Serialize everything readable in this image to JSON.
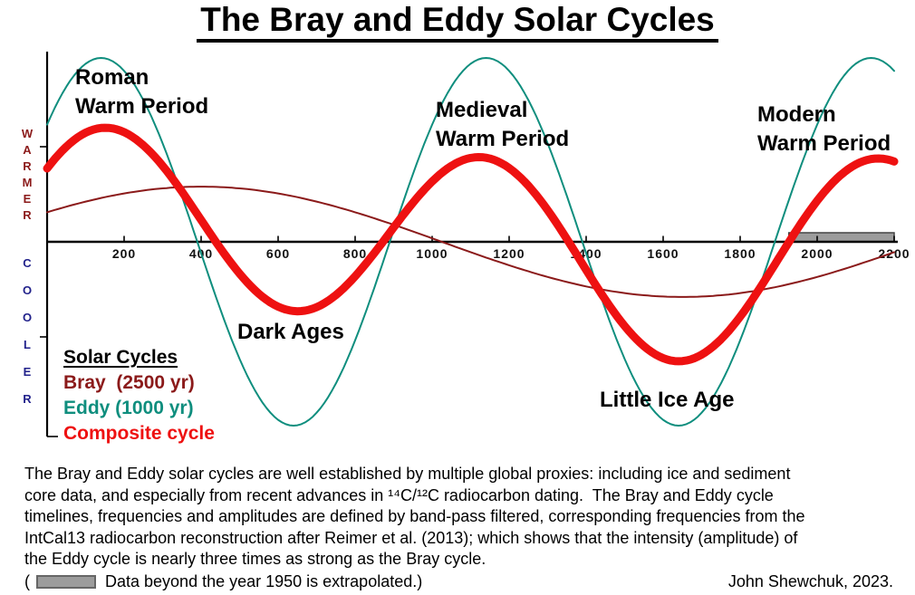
{
  "title": "The Bray and Eddy Solar Cycles",
  "chart_data": {
    "type": "line",
    "title": "The Bray and Eddy Solar Cycles",
    "x_axis": {
      "min": 0,
      "max": 2200,
      "ticks": [
        200,
        400,
        600,
        800,
        1000,
        1200,
        1400,
        1600,
        1800,
        2000,
        2200
      ]
    },
    "y_axis": {
      "top_label": "WARMER",
      "bottom_label": "COOLER",
      "top_label_color": "#8b1a1a",
      "bottom_label_color": "#22228b"
    },
    "series": [
      {
        "name": "Bray (2500 yr)",
        "kind": "cosine",
        "period_yr": 2500,
        "peak_year": 400,
        "amplitude": 0.3,
        "color": "#8b1a1a",
        "stroke_px": 2
      },
      {
        "name": "Eddy (1000 yr)",
        "kind": "cosine",
        "period_yr": 1000,
        "peak_year": 140,
        "amplitude": 1.0,
        "color": "#0f8e7e",
        "stroke_px": 2
      },
      {
        "name": "Composite cycle",
        "kind": "mean_of_series",
        "components": [
          0,
          1
        ],
        "color": "#ee1111",
        "stroke_px": 9
      }
    ],
    "annotations": [
      {
        "text": "Roman\nWarm Period"
      },
      {
        "text": "Dark Ages"
      },
      {
        "text": "Medieval\nWarm Period"
      },
      {
        "text": "Little Ice Age"
      },
      {
        "text": "Modern\nWarm Period"
      }
    ],
    "extrapolation": {
      "from_year": 1950,
      "to_year": 2200,
      "bar_color": "#9c9c9c"
    }
  },
  "legend": {
    "heading": "Solar Cycles",
    "items": [
      {
        "label": "Bray  (2500 yr)",
        "color": "#8b1a1a"
      },
      {
        "label": "Eddy (1000 yr)",
        "color": "#0f8e7e"
      },
      {
        "label": "Composite cycle",
        "color": "#ee1111"
      }
    ]
  },
  "footer": {
    "description_lines": [
      "The Bray and Eddy solar cycles are well established by multiple global proxies: including ice and sediment",
      "core data, and especially from recent advances in ¹⁴C/¹²C radiocarbon dating.  The Bray and Eddy cycle",
      "timelines, frequencies and amplitudes are defined by band-pass filtered, corresponding frequencies from the",
      "IntCal13 radiocarbon reconstruction after Reimer et al. (2013); which shows that the intensity (amplitude) of",
      "the Eddy cycle is nearly three times as strong as the Bray cycle."
    ],
    "note_open": "(",
    "note": "Data beyond the year 1950 is extrapolated.)",
    "attribution": "John Shewchuk, 2023."
  }
}
